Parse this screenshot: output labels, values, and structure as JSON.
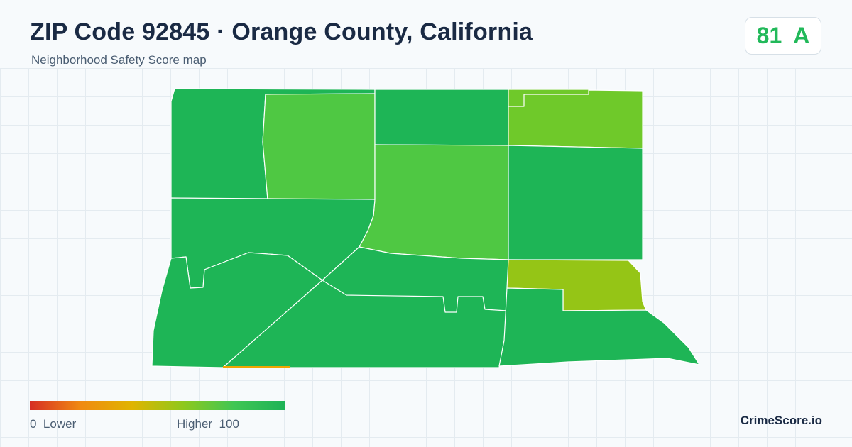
{
  "header": {
    "title": "ZIP Code 92845 · Orange County, California",
    "subtitle": "Neighborhood Safety Score map"
  },
  "score": {
    "value": "81",
    "grade": "A",
    "color": "#22b95a"
  },
  "legend": {
    "min_label": "0",
    "low_label": "Lower",
    "high_label": "Higher",
    "max_label": "100",
    "gradient_colors": [
      "#d62d24",
      "#f08a12",
      "#e0b400",
      "#8fc81c",
      "#3fc654",
      "#1db256"
    ]
  },
  "brand": "CrimeScore.io",
  "map": {
    "region_colors": {
      "high": "#1eb556",
      "good": "#4fc843",
      "fair": "#6fc92a",
      "moderate": "#95c516",
      "low": "#f0a500"
    }
  }
}
